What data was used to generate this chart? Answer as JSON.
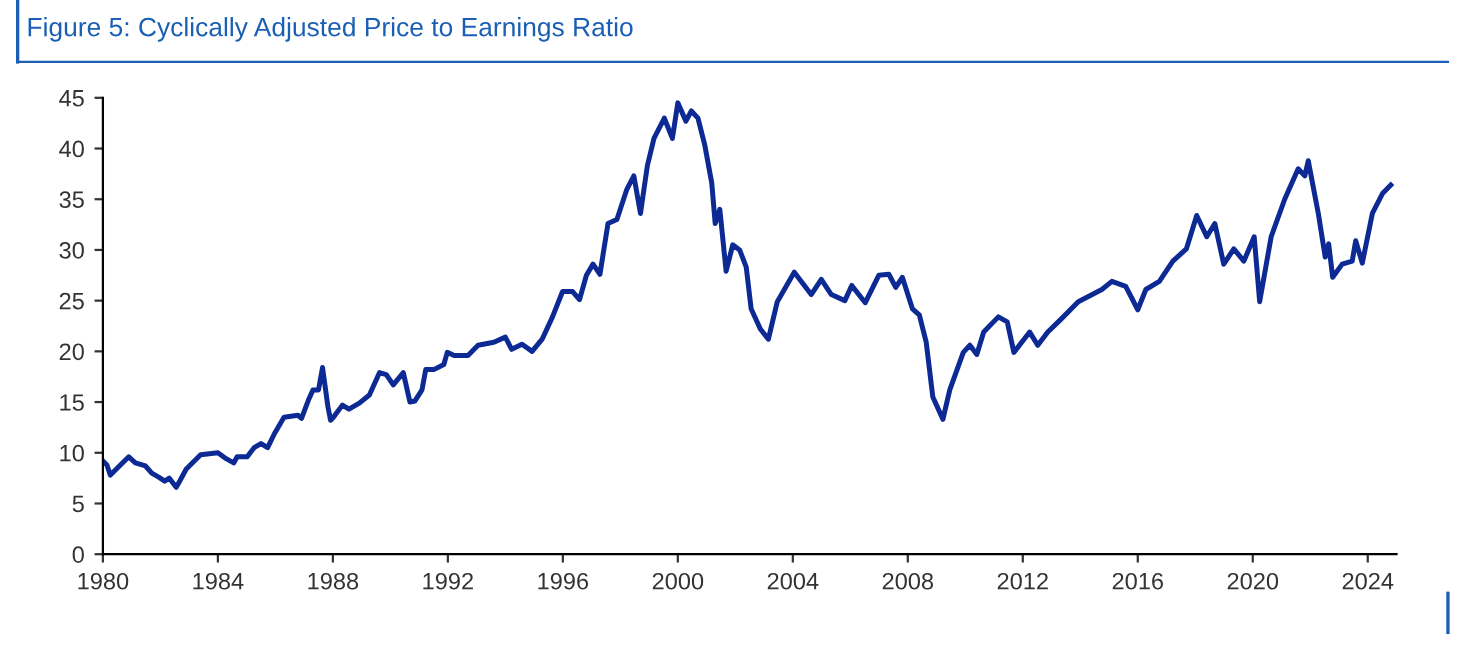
{
  "chart_data": {
    "type": "line",
    "title": "Figure 5: Cyclically Adjusted Price to Earnings Ratio",
    "x": [
      1980.0,
      1980.14,
      1980.26,
      1980.54,
      1980.9,
      1981.13,
      1981.48,
      1981.7,
      1981.94,
      1982.15,
      1982.31,
      1982.55,
      1982.67,
      1982.9,
      1983.4,
      1984.0,
      1984.24,
      1984.55,
      1984.67,
      1985.02,
      1985.26,
      1985.5,
      1985.73,
      1985.97,
      1986.3,
      1986.79,
      1986.91,
      1987.15,
      1987.31,
      1987.5,
      1987.64,
      1987.83,
      1987.92,
      1988.02,
      1988.33,
      1988.56,
      1988.92,
      1989.27,
      1989.62,
      1989.86,
      1990.1,
      1990.45,
      1990.68,
      1990.85,
      1991.1,
      1991.23,
      1991.51,
      1991.86,
      1991.98,
      1992.22,
      1992.7,
      1993.05,
      1993.6,
      1994.0,
      1994.22,
      1994.58,
      1994.93,
      1995.28,
      1995.64,
      1995.99,
      1996.34,
      1996.58,
      1996.82,
      1997.05,
      1997.29,
      1997.57,
      1997.88,
      1998.23,
      1998.47,
      1998.7,
      1998.94,
      1999.17,
      1999.53,
      1999.81,
      2000.0,
      2000.28,
      2000.47,
      2000.7,
      2000.94,
      2001.18,
      2001.3,
      2001.46,
      2001.68,
      2001.91,
      2002.15,
      2002.38,
      2002.55,
      2002.87,
      2003.15,
      2003.46,
      2004.05,
      2004.64,
      2004.99,
      2005.34,
      2005.81,
      2006.05,
      2006.52,
      2006.99,
      2007.34,
      2007.58,
      2007.81,
      2008.16,
      2008.4,
      2008.64,
      2008.87,
      2009.22,
      2009.46,
      2009.93,
      2010.16,
      2010.4,
      2010.64,
      2011.15,
      2011.46,
      2011.69,
      2012.24,
      2012.52,
      2012.87,
      2013.34,
      2013.93,
      2014.75,
      2015.1,
      2015.58,
      2016.0,
      2016.28,
      2016.75,
      2017.22,
      2017.69,
      2018.05,
      2018.4,
      2018.68,
      2018.99,
      2019.34,
      2019.69,
      2020.05,
      2020.24,
      2020.64,
      2021.11,
      2021.58,
      2021.81,
      2021.93,
      2022.28,
      2022.52,
      2022.64,
      2022.78,
      2023.11,
      2023.46,
      2023.58,
      2023.81,
      2024.16,
      2024.52,
      2024.8
    ],
    "series": [
      {
        "color": "#0d2a94",
        "values": [
          9.2,
          8.8,
          7.8,
          8.6,
          9.6,
          9.0,
          8.7,
          8.0,
          7.6,
          7.2,
          7.5,
          6.6,
          7.2,
          8.4,
          9.8,
          10.0,
          9.5,
          9.0,
          9.6,
          9.6,
          10.5,
          10.9,
          10.5,
          11.9,
          13.5,
          13.7,
          13.4,
          15.2,
          16.2,
          16.2,
          18.4,
          14.5,
          13.2,
          13.5,
          14.7,
          14.3,
          14.9,
          15.7,
          17.9,
          17.7,
          16.7,
          17.9,
          15.0,
          15.1,
          16.2,
          18.2,
          18.2,
          18.7,
          19.9,
          19.6,
          19.6,
          20.6,
          20.9,
          21.4,
          20.2,
          20.7,
          20.0,
          21.2,
          23.4,
          25.9,
          25.9,
          25.1,
          27.5,
          28.6,
          27.6,
          32.6,
          33.0,
          36.0,
          37.3,
          33.6,
          38.3,
          41.0,
          43.0,
          41.0,
          44.5,
          42.7,
          43.7,
          43.0,
          40.3,
          36.6,
          32.6,
          34.0,
          27.9,
          30.5,
          30.0,
          28.3,
          24.2,
          22.2,
          21.2,
          24.9,
          27.8,
          25.6,
          27.1,
          25.6,
          25.0,
          26.5,
          24.8,
          27.5,
          27.6,
          26.3,
          27.3,
          24.2,
          23.6,
          20.9,
          15.5,
          13.3,
          16.2,
          19.9,
          20.6,
          19.7,
          21.9,
          23.4,
          22.9,
          19.9,
          21.9,
          20.6,
          21.9,
          23.2,
          24.9,
          26.1,
          26.9,
          26.4,
          24.1,
          26.1,
          26.9,
          28.9,
          30.1,
          33.4,
          31.3,
          32.6,
          28.6,
          30.1,
          28.9,
          31.3,
          24.9,
          31.3,
          35.0,
          38.0,
          37.3,
          38.8,
          33.6,
          29.3,
          30.6,
          27.3,
          28.6,
          28.9,
          30.9,
          28.7,
          33.6,
          35.6,
          36.4
        ]
      }
    ],
    "xlim": [
      1980,
      2025
    ],
    "xticks": [
      1980,
      1984,
      1988,
      1992,
      1996,
      2000,
      2004,
      2008,
      2012,
      2016,
      2020,
      2024
    ],
    "ylim": [
      0,
      45
    ],
    "yticks": [
      0,
      5,
      10,
      15,
      20,
      25,
      30,
      35,
      40,
      45
    ],
    "grid": false,
    "legend": false,
    "marker": "none",
    "line_style": "solid"
  }
}
